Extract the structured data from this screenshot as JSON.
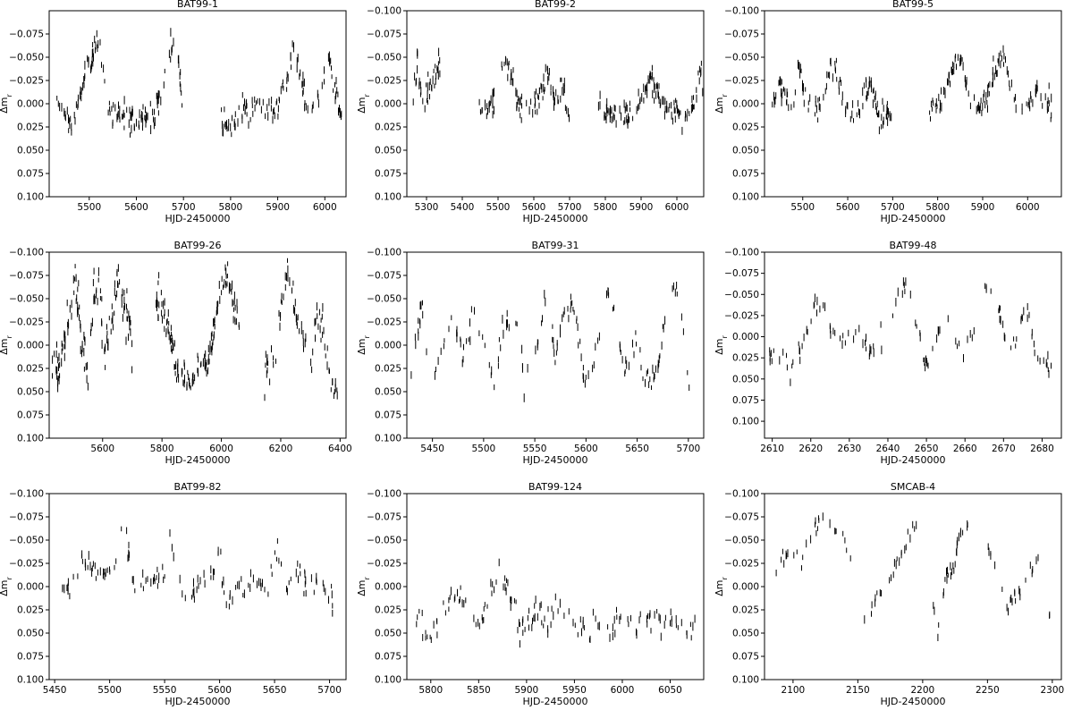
{
  "figure": {
    "xlabel": "HJD-2450000",
    "ylabel": "Δm",
    "ylabel_sub": "r"
  },
  "chart_data": [
    {
      "type": "scatter",
      "title": "BAT99-1",
      "xlabel": "HJD-2450000",
      "ylabel": "Δm_r",
      "xlim": [
        5415,
        6045
      ],
      "ylim": [
        0.1,
        -0.1
      ],
      "y_inverted": true,
      "xticks": [
        5500,
        5600,
        5700,
        5800,
        5900,
        6000
      ],
      "yticks": [
        0.1,
        0.075,
        0.05,
        0.025,
        0.0,
        -0.025,
        -0.05,
        -0.075
      ],
      "ytick_labels": [
        "0.100",
        "0.075",
        "0.050",
        "0.025",
        "0.000",
        "−0.025",
        "−0.050",
        "−0.075"
      ],
      "marker": "error-bar",
      "grid": false,
      "segments": [
        {
          "x": [
            5430,
            5450,
            5470,
            5490,
            5505,
            5515,
            5525,
            5540,
            5560,
            5580,
            5600,
            5620,
            5640,
            5655,
            5665,
            5675,
            5685,
            5700
          ],
          "y": [
            0.0,
            0.02,
            0.015,
            -0.03,
            -0.05,
            -0.065,
            -0.045,
            0.0,
            0.01,
            0.015,
            0.02,
            0.015,
            0.01,
            -0.015,
            -0.045,
            -0.065,
            -0.06,
            0.015
          ],
          "n": 150,
          "amp": 0.012
        },
        {
          "x": [
            5780,
            5800,
            5830,
            5860,
            5880,
            5900,
            5915,
            5925,
            5935,
            5945,
            5960,
            5980,
            5995,
            6005,
            6020,
            6040
          ],
          "y": [
            0.015,
            0.025,
            0.005,
            0.0,
            0.01,
            0.0,
            -0.02,
            -0.045,
            -0.06,
            -0.035,
            0.0,
            0.01,
            -0.03,
            -0.05,
            -0.02,
            0.03
          ],
          "n": 120,
          "amp": 0.012
        }
      ]
    },
    {
      "type": "scatter",
      "title": "BAT99-2",
      "xlabel": "HJD-2450000",
      "ylabel": "Δm_r",
      "xlim": [
        5245,
        6075
      ],
      "ylim": [
        0.1,
        -0.1
      ],
      "y_inverted": true,
      "xticks": [
        5300,
        5400,
        5500,
        5600,
        5700,
        5800,
        5900,
        6000
      ],
      "yticks": [
        0.1,
        0.075,
        0.05,
        0.025,
        0.0,
        -0.025,
        -0.05,
        -0.075,
        -0.1
      ],
      "ytick_labels": [
        "0.100",
        "0.075",
        "0.050",
        "0.025",
        "0.000",
        "−0.025",
        "−0.050",
        "−0.075",
        "−0.100"
      ],
      "marker": "error-bar",
      "grid": false,
      "segments": [
        {
          "x": [
            5260,
            5275,
            5290,
            5305,
            5320,
            5340
          ],
          "y": [
            0.005,
            -0.045,
            0.01,
            -0.02,
            -0.03,
            -0.045
          ],
          "n": 40,
          "amp": 0.012
        },
        {
          "x": [
            5440,
            5470,
            5500,
            5520,
            5535,
            5560,
            5590,
            5620,
            5640,
            5660,
            5680,
            5700
          ],
          "y": [
            0.005,
            0.005,
            -0.02,
            -0.05,
            -0.035,
            0.005,
            0.01,
            -0.01,
            -0.035,
            0.0,
            -0.025,
            0.02
          ],
          "n": 110,
          "amp": 0.012
        },
        {
          "x": [
            5780,
            5810,
            5840,
            5870,
            5890,
            5910,
            5930,
            5950,
            5970,
            6000,
            6030,
            6050,
            6065,
            6075
          ],
          "y": [
            0.005,
            0.01,
            0.01,
            0.015,
            0.0,
            -0.015,
            -0.03,
            -0.01,
            0.005,
            0.01,
            0.01,
            -0.005,
            -0.04,
            -0.02
          ],
          "n": 130,
          "amp": 0.012
        }
      ]
    },
    {
      "type": "scatter",
      "title": "BAT99-5",
      "xlabel": "HJD-2450000",
      "ylabel": "Δm_r",
      "xlim": [
        5415,
        6075
      ],
      "ylim": [
        0.1,
        -0.1
      ],
      "y_inverted": true,
      "xticks": [
        5500,
        5600,
        5700,
        5800,
        5900,
        6000
      ],
      "yticks": [
        0.1,
        0.075,
        0.05,
        0.025,
        0.0,
        -0.025,
        -0.05,
        -0.075,
        -0.1
      ],
      "ytick_labels": [
        "0.100",
        "0.075",
        "0.050",
        "0.025",
        "0.000",
        "−0.025",
        "−0.050",
        "−0.075",
        "−0.100"
      ],
      "marker": "error-bar",
      "grid": false,
      "segments": [
        {
          "x": [
            5430,
            5450,
            5470,
            5480,
            5490,
            5500,
            5520,
            5540,
            5560,
            5575,
            5590,
            5610,
            5630,
            5650,
            5670,
            5700
          ],
          "y": [
            0.0,
            -0.02,
            0.005,
            0.005,
            -0.04,
            -0.02,
            0.01,
            0.0,
            -0.035,
            -0.04,
            0.0,
            0.01,
            0.0,
            -0.02,
            0.015,
            0.005
          ],
          "n": 130,
          "amp": 0.012
        },
        {
          "x": [
            5780,
            5800,
            5820,
            5840,
            5850,
            5870,
            5890,
            5910,
            5930,
            5945,
            5960,
            5980,
            6000,
            6020,
            6040,
            6060
          ],
          "y": [
            0.0,
            0.005,
            -0.02,
            -0.045,
            -0.05,
            -0.005,
            0.01,
            -0.005,
            -0.04,
            -0.055,
            -0.02,
            -0.005,
            0.005,
            -0.015,
            -0.005,
            0.01
          ],
          "n": 130,
          "amp": 0.012
        }
      ]
    },
    {
      "type": "scatter",
      "title": "BAT99-26",
      "xlabel": "HJD-2450000",
      "ylabel": "Δm_r",
      "xlim": [
        5420,
        6420
      ],
      "ylim": [
        0.1,
        -0.1
      ],
      "y_inverted": true,
      "xticks": [
        5600,
        5800,
        6000,
        6200,
        6400
      ],
      "yticks": [
        0.1,
        0.075,
        0.05,
        0.025,
        0.0,
        -0.025,
        -0.05,
        -0.075,
        -0.1
      ],
      "ytick_labels": [
        "0.100",
        "0.075",
        "0.050",
        "0.025",
        "0.000",
        "−0.025",
        "−0.050",
        "−0.075",
        "−0.100"
      ],
      "marker": "error-bar",
      "grid": false,
      "segments": [
        {
          "x": [
            5430,
            5450,
            5470,
            5490,
            5510,
            5530,
            5550,
            5570,
            5590,
            5610,
            5630,
            5650,
            5670,
            5690,
            5700
          ],
          "y": [
            0.02,
            0.03,
            0.0,
            -0.04,
            -0.07,
            0.0,
            0.03,
            -0.05,
            -0.06,
            0.02,
            -0.03,
            -0.07,
            -0.04,
            -0.02,
            0.0
          ],
          "n": 140,
          "amp": 0.02
        },
        {
          "x": [
            5780,
            5800,
            5820,
            5840,
            5860,
            5880,
            5900,
            5920,
            5940,
            5960,
            5980,
            6000,
            6020,
            6040,
            6060
          ],
          "y": [
            -0.05,
            -0.04,
            -0.02,
            0.01,
            0.03,
            0.035,
            0.03,
            0.03,
            0.025,
            0.01,
            -0.03,
            -0.065,
            -0.07,
            -0.05,
            -0.02
          ],
          "n": 150,
          "amp": 0.015
        },
        {
          "x": [
            6140,
            6160,
            6180,
            6200,
            6220,
            6240,
            6260,
            6280,
            6300,
            6320,
            6340,
            6360,
            6380,
            6400
          ],
          "y": [
            0.03,
            0.02,
            0.01,
            -0.04,
            -0.075,
            -0.06,
            -0.02,
            0.0,
            0.03,
            -0.03,
            -0.02,
            0.02,
            0.05,
            0.05
          ],
          "n": 80,
          "amp": 0.015
        }
      ]
    },
    {
      "type": "scatter",
      "title": "BAT99-31",
      "xlabel": "HJD-2450000",
      "ylabel": "Δm_r",
      "xlim": [
        5425,
        5715
      ],
      "ylim": [
        0.1,
        -0.1
      ],
      "y_inverted": true,
      "xticks": [
        5450,
        5500,
        5550,
        5600,
        5650,
        5700
      ],
      "yticks": [
        0.1,
        0.075,
        0.05,
        0.025,
        0.0,
        -0.025,
        -0.05,
        -0.075,
        -0.1
      ],
      "ytick_labels": [
        "0.100",
        "0.075",
        "0.050",
        "0.025",
        "0.000",
        "−0.025",
        "−0.050",
        "−0.075",
        "−0.100"
      ],
      "marker": "error-bar",
      "grid": false,
      "segments": [
        {
          "x": [
            5428,
            5440,
            5450,
            5460,
            5470,
            5480,
            5490,
            5500,
            5510,
            5520,
            5530,
            5540,
            5550,
            5560,
            5570,
            5580,
            5590,
            5600,
            5610,
            5620,
            5630,
            5640,
            5650,
            5660,
            5670,
            5680,
            5690,
            5700,
            5705
          ],
          "y": [
            0.025,
            -0.045,
            0.035,
            0.0,
            -0.03,
            0.02,
            -0.03,
            0.0,
            0.045,
            -0.02,
            -0.03,
            0.035,
            0.02,
            -0.05,
            0.01,
            -0.045,
            -0.03,
            0.045,
            0.01,
            -0.06,
            -0.01,
            0.03,
            -0.005,
            0.04,
            0.02,
            -0.04,
            -0.07,
            0.04,
            -0.015
          ],
          "n": 160,
          "amp": 0.012
        }
      ]
    },
    {
      "type": "scatter",
      "title": "BAT99-48",
      "xlabel": "HJD-2450000",
      "ylabel": "Δm_r",
      "xlim": [
        2608,
        2685
      ],
      "ylim": [
        0.12,
        -0.1
      ],
      "y_inverted": true,
      "xticks": [
        2610,
        2620,
        2630,
        2640,
        2650,
        2660,
        2670,
        2680
      ],
      "yticks": [
        0.1,
        0.075,
        0.05,
        0.025,
        0.0,
        -0.025,
        -0.05,
        -0.075,
        -0.1
      ],
      "ytick_labels": [
        "0.100",
        "0.075",
        "0.050",
        "0.025",
        "0.000",
        "−0.025",
        "−0.050",
        "−0.075",
        "−0.100"
      ],
      "marker": "error-bar",
      "grid": false,
      "segments": [
        {
          "x": [
            2609,
            2612,
            2615,
            2618,
            2621,
            2623,
            2626,
            2629,
            2632,
            2635,
            2638,
            2641,
            2644,
            2646,
            2648,
            2650,
            2653,
            2656,
            2659,
            2662,
            2665,
            2667,
            2670,
            2673,
            2676,
            2678,
            2680,
            2683
          ],
          "y": [
            0.025,
            0.025,
            0.03,
            0.01,
            -0.04,
            -0.035,
            0.0,
            0.005,
            -0.015,
            0.015,
            0.01,
            -0.02,
            -0.06,
            -0.04,
            0.0,
            0.03,
            0.0,
            -0.02,
            0.015,
            0.005,
            -0.05,
            -0.07,
            0.0,
            0.01,
            -0.04,
            0.02,
            0.03,
            0.03
          ],
          "n": 130,
          "amp": 0.012
        }
      ]
    },
    {
      "type": "scatter",
      "title": "BAT99-82",
      "xlabel": "HJD-2450000",
      "ylabel": "Δm_r",
      "xlim": [
        5445,
        5715
      ],
      "ylim": [
        0.1,
        -0.1
      ],
      "y_inverted": true,
      "xticks": [
        5450,
        5500,
        5550,
        5600,
        5650,
        5700
      ],
      "yticks": [
        0.1,
        0.075,
        0.05,
        0.025,
        0.0,
        -0.025,
        -0.05,
        -0.075,
        -0.1
      ],
      "ytick_labels": [
        "0.100",
        "0.075",
        "0.050",
        "0.025",
        "0.000",
        "−0.025",
        "−0.050",
        "−0.075",
        "−0.100"
      ],
      "marker": "error-bar",
      "grid": false,
      "segments": [
        {
          "x": [
            5455,
            5465,
            5475,
            5485,
            5495,
            5505,
            5510,
            5515,
            5520,
            5530,
            5540,
            5550,
            5555,
            5565,
            5575,
            5585,
            5595,
            5600,
            5605,
            5615,
            5625,
            5635,
            5645,
            5650,
            5660,
            5670,
            5680,
            5690,
            5700,
            5705
          ],
          "y": [
            0.0,
            0.005,
            -0.03,
            -0.015,
            -0.015,
            -0.02,
            -0.065,
            -0.07,
            -0.005,
            -0.01,
            -0.01,
            -0.005,
            -0.055,
            0.005,
            0.01,
            -0.005,
            -0.01,
            -0.045,
            0.015,
            0.0,
            -0.005,
            -0.01,
            0.005,
            -0.055,
            0.005,
            -0.025,
            0.0,
            -0.02,
            0.01,
            0.015
          ],
          "n": 150,
          "amp": 0.012
        }
      ]
    },
    {
      "type": "scatter",
      "title": "BAT99-124",
      "xlabel": "HJD-2450000",
      "ylabel": "Δm_r",
      "xlim": [
        5775,
        6085
      ],
      "ylim": [
        0.1,
        -0.1
      ],
      "y_inverted": true,
      "xticks": [
        5800,
        5850,
        5900,
        5950,
        6000,
        6050
      ],
      "yticks": [
        0.1,
        0.075,
        0.05,
        0.025,
        0.0,
        -0.025,
        -0.05,
        -0.075,
        -0.1
      ],
      "ytick_labels": [
        "0.100",
        "0.075",
        "0.050",
        "0.025",
        "0.000",
        "−0.025",
        "−0.050",
        "−0.075",
        "−0.100"
      ],
      "marker": "error-bar",
      "grid": false,
      "segments": [
        {
          "x": [
            5785,
            5800,
            5815,
            5830,
            5845,
            5860,
            5870,
            5880,
            5895,
            5910,
            5925,
            5940,
            5955,
            5970,
            5985,
            6000,
            6015,
            6030,
            6045,
            6065,
            6080
          ],
          "y": [
            0.035,
            0.05,
            0.025,
            0.01,
            0.045,
            0.02,
            -0.025,
            0.0,
            0.05,
            0.03,
            0.04,
            0.01,
            0.05,
            0.035,
            0.05,
            0.025,
            0.045,
            0.03,
            0.035,
            0.05,
            0.04
          ],
          "n": 150,
          "amp": 0.012
        }
      ]
    },
    {
      "type": "scatter",
      "title": "SMCAB-4",
      "xlabel": "HJD-2450000",
      "ylabel": "Δm_r",
      "xlim": [
        2078,
        2307
      ],
      "ylim": [
        0.1,
        -0.1
      ],
      "y_inverted": true,
      "xticks": [
        2100,
        2150,
        2200,
        2250,
        2300
      ],
      "yticks": [
        0.1,
        0.075,
        0.05,
        0.025,
        0.0,
        -0.025,
        -0.05,
        -0.075,
        -0.1
      ],
      "ytick_labels": [
        "0.100",
        "0.075",
        "0.050",
        "0.025",
        "0.000",
        "−0.025",
        "−0.050",
        "−0.075",
        "−0.100"
      ],
      "marker": "error-bar",
      "grid": false,
      "segments": [
        {
          "x": [
            2086,
            2100,
            2107,
            2115,
            2125,
            2132,
            2140,
            2145
          ],
          "y": [
            -0.025,
            -0.04,
            -0.025,
            -0.06,
            -0.075,
            -0.065,
            -0.05,
            -0.02
          ],
          "n": 28,
          "amp": 0.008
        },
        {
          "x": [
            2155,
            2165,
            2175,
            2182,
            2190,
            2196
          ],
          "y": [
            0.03,
            0.01,
            -0.005,
            -0.03,
            -0.055,
            -0.065
          ],
          "n": 24,
          "amp": 0.008
        },
        {
          "x": [
            2205,
            2212,
            2218,
            2224,
            2230,
            2237
          ],
          "y": [
            0.02,
            0.04,
            -0.01,
            -0.025,
            -0.06,
            -0.075
          ],
          "n": 28,
          "amp": 0.01
        },
        {
          "x": [
            2250,
            2258,
            2266,
            2274,
            2282,
            2290,
            2298
          ],
          "y": [
            -0.045,
            -0.01,
            0.025,
            0.005,
            -0.015,
            -0.035,
            0.03
          ],
          "n": 26,
          "amp": 0.01
        }
      ]
    }
  ]
}
